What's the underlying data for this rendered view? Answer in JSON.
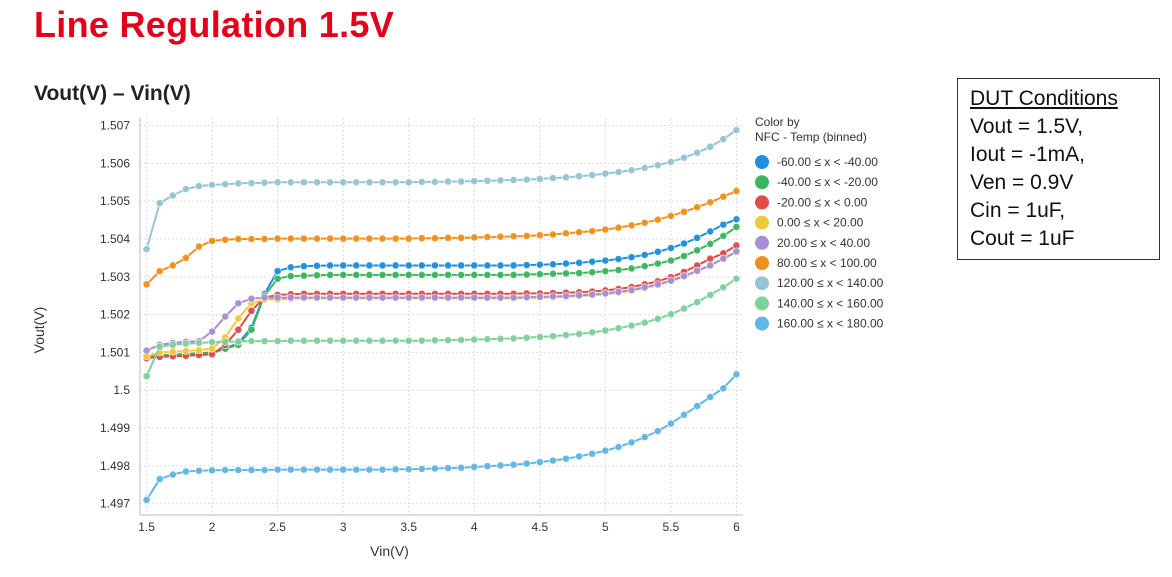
{
  "page_title": "Line Regulation 1.5V",
  "dut_conditions": {
    "heading": "DUT Conditions",
    "lines": [
      "Vout = 1.5V,",
      "Iout = -1mA,",
      "Ven = 0.9V",
      "Cin = 1uF,",
      "Cout = 1uF"
    ]
  },
  "chart_data": {
    "type": "line",
    "title": "Vout(V) – Vin(V)",
    "xlabel": "Vin(V)",
    "ylabel": "Vout(V)",
    "xlim": [
      1.45,
      6.05
    ],
    "ylim": [
      1.4967,
      1.5072
    ],
    "xticks": [
      1.5,
      2,
      2.5,
      3,
      3.5,
      4,
      4.5,
      5,
      5.5,
      6
    ],
    "xtick_labels": [
      "1.5",
      "2",
      "2.5",
      "3",
      "3.5",
      "4",
      "4.5",
      "5",
      "5.5",
      "6"
    ],
    "yticks": [
      1.497,
      1.498,
      1.499,
      1.5,
      1.501,
      1.502,
      1.503,
      1.504,
      1.505,
      1.506,
      1.507
    ],
    "ytick_labels": [
      "1.497",
      "1.498",
      "1.499",
      "1.5",
      "1.501",
      "1.502",
      "1.503",
      "1.504",
      "1.505",
      "1.506",
      "1.507"
    ],
    "grid": true,
    "legend": {
      "title_lines": [
        "Color by",
        "NFC - Temp (binned)"
      ],
      "position": "right"
    },
    "x": [
      1.5,
      1.6,
      1.7,
      1.8,
      1.9,
      2.0,
      2.1,
      2.2,
      2.3,
      2.4,
      2.5,
      2.6,
      2.7,
      2.8,
      2.9,
      3.0,
      3.1,
      3.2,
      3.3,
      3.4,
      3.5,
      3.6,
      3.7,
      3.8,
      3.9,
      4.0,
      4.1,
      4.2,
      4.3,
      4.4,
      4.5,
      4.6,
      4.7,
      4.8,
      4.9,
      5.0,
      5.1,
      5.2,
      5.3,
      5.4,
      5.5,
      5.6,
      5.7,
      5.8,
      5.9,
      6.0
    ],
    "series": [
      {
        "name": "-60.00 ≤ x < -40.00",
        "color": "#1f8fde",
        "values": [
          1.50085,
          1.5009,
          1.50092,
          1.50094,
          1.50096,
          1.50098,
          1.5011,
          1.50125,
          1.50165,
          1.50255,
          1.50315,
          1.50325,
          1.50328,
          1.50329,
          1.5033,
          1.5033,
          1.5033,
          1.5033,
          1.5033,
          1.5033,
          1.5033,
          1.5033,
          1.5033,
          1.5033,
          1.5033,
          1.5033,
          1.5033,
          1.5033,
          1.5033,
          1.50331,
          1.50332,
          1.50333,
          1.50335,
          1.50337,
          1.5034,
          1.50343,
          1.50347,
          1.50352,
          1.50358,
          1.50366,
          1.50376,
          1.50388,
          1.50403,
          1.5042,
          1.50438,
          1.50452
        ]
      },
      {
        "name": "-40.00 ≤ x < -20.00",
        "color": "#3cb55f",
        "values": [
          1.50088,
          1.50092,
          1.50094,
          1.50096,
          1.50098,
          1.501,
          1.5011,
          1.5012,
          1.5016,
          1.5025,
          1.50295,
          1.50302,
          1.50303,
          1.50304,
          1.50305,
          1.50305,
          1.50305,
          1.50305,
          1.50305,
          1.50305,
          1.50305,
          1.50305,
          1.50305,
          1.50305,
          1.50305,
          1.50305,
          1.50305,
          1.50305,
          1.50305,
          1.50306,
          1.50307,
          1.50308,
          1.50309,
          1.5031,
          1.50312,
          1.50315,
          1.50318,
          1.50322,
          1.50328,
          1.50335,
          1.50343,
          1.50355,
          1.5037,
          1.50387,
          1.50408,
          1.50432
        ]
      },
      {
        "name": "-20.00 ≤ x < 0.00",
        "color": "#e24a4a",
        "values": [
          1.50085,
          1.50088,
          1.5009,
          1.50091,
          1.50093,
          1.50095,
          1.5012,
          1.5016,
          1.5021,
          1.50245,
          1.50252,
          1.50254,
          1.50255,
          1.50255,
          1.50255,
          1.50255,
          1.50255,
          1.50255,
          1.50255,
          1.50255,
          1.50255,
          1.50255,
          1.50255,
          1.50255,
          1.50255,
          1.50255,
          1.50255,
          1.50255,
          1.50255,
          1.50256,
          1.50256,
          1.50257,
          1.50258,
          1.50259,
          1.50261,
          1.50264,
          1.50268,
          1.50273,
          1.5028,
          1.50288,
          1.50299,
          1.50313,
          1.5033,
          1.50348,
          1.50362,
          1.50383
        ]
      },
      {
        "name": "0.00 ≤ x < 20.00",
        "color": "#f0c93a",
        "values": [
          1.5009,
          1.501,
          1.50102,
          1.50104,
          1.50106,
          1.5011,
          1.5014,
          1.5019,
          1.5023,
          1.5024,
          1.5024,
          1.50242,
          1.50243,
          1.50243,
          1.50243,
          1.50243,
          1.50243,
          1.50243,
          1.50243,
          1.50243,
          1.50243,
          1.50243,
          1.50243,
          1.50243,
          1.50243,
          1.50243,
          1.50243,
          1.50243,
          1.50243,
          1.50244,
          1.50245,
          1.50246,
          1.50247,
          1.50249,
          1.50251,
          1.50254,
          1.50258,
          1.50263,
          1.5027,
          1.50278,
          1.50288,
          1.503,
          1.50315,
          1.5033,
          1.50348,
          1.50365
        ]
      },
      {
        "name": "20.00 ≤ x < 40.00",
        "color": "#a78fd6",
        "values": [
          1.50105,
          1.5012,
          1.50125,
          1.50128,
          1.5013,
          1.50155,
          1.50195,
          1.5023,
          1.50242,
          1.50245,
          1.50245,
          1.50245,
          1.50245,
          1.50245,
          1.50245,
          1.50245,
          1.50245,
          1.50245,
          1.50245,
          1.50245,
          1.50245,
          1.50245,
          1.50245,
          1.50245,
          1.50245,
          1.50245,
          1.50245,
          1.50245,
          1.50245,
          1.50246,
          1.50247,
          1.50248,
          1.50249,
          1.50251,
          1.50253,
          1.50256,
          1.5026,
          1.50265,
          1.50272,
          1.5028,
          1.5029,
          1.50302,
          1.50316,
          1.5033,
          1.50348,
          1.50367
        ]
      },
      {
        "name": "80.00 ≤ x < 100.00",
        "color": "#f0901c",
        "values": [
          1.5028,
          1.50315,
          1.5033,
          1.5035,
          1.5038,
          1.50395,
          1.50398,
          1.504,
          1.504,
          1.504,
          1.50401,
          1.50401,
          1.50401,
          1.50401,
          1.50401,
          1.50401,
          1.50401,
          1.50401,
          1.50401,
          1.50401,
          1.50401,
          1.50402,
          1.50402,
          1.50403,
          1.50403,
          1.50404,
          1.50405,
          1.50406,
          1.50407,
          1.50408,
          1.5041,
          1.50412,
          1.50415,
          1.50418,
          1.50421,
          1.50425,
          1.5043,
          1.50436,
          1.50443,
          1.50451,
          1.50461,
          1.50472,
          1.50484,
          1.50497,
          1.50512,
          1.50527
        ]
      },
      {
        "name": "120.00 ≤ x < 140.00",
        "color": "#96c4d4",
        "values": [
          1.50373,
          1.50495,
          1.50515,
          1.50532,
          1.5054,
          1.50543,
          1.50545,
          1.50547,
          1.50548,
          1.50549,
          1.5055,
          1.5055,
          1.5055,
          1.5055,
          1.5055,
          1.5055,
          1.5055,
          1.5055,
          1.5055,
          1.5055,
          1.5055,
          1.50551,
          1.50551,
          1.50552,
          1.50552,
          1.50553,
          1.50554,
          1.50555,
          1.50556,
          1.50557,
          1.50559,
          1.50561,
          1.50563,
          1.50566,
          1.50569,
          1.50573,
          1.50577,
          1.50582,
          1.50588,
          1.50595,
          1.50604,
          1.50615,
          1.50628,
          1.50644,
          1.50664,
          1.50688
        ]
      },
      {
        "name": "140.00 ≤ x < 160.00",
        "color": "#7fd09a",
        "values": [
          1.50037,
          1.50115,
          1.5012,
          1.50123,
          1.50125,
          1.50127,
          1.50128,
          1.50129,
          1.5013,
          1.5013,
          1.5013,
          1.50131,
          1.50131,
          1.50131,
          1.50131,
          1.50131,
          1.50131,
          1.50131,
          1.50131,
          1.50131,
          1.50131,
          1.50131,
          1.50132,
          1.50132,
          1.50133,
          1.50134,
          1.50135,
          1.50136,
          1.50137,
          1.50139,
          1.50141,
          1.50143,
          1.50146,
          1.50149,
          1.50153,
          1.50158,
          1.50164,
          1.50171,
          1.50179,
          1.50189,
          1.50201,
          1.50216,
          1.50233,
          1.50252,
          1.50272,
          1.50295
        ]
      },
      {
        "name": "160.00 ≤ x < 180.00",
        "color": "#62b6e6",
        "values": [
          1.4971,
          1.49765,
          1.49777,
          1.49785,
          1.49787,
          1.49788,
          1.49789,
          1.49789,
          1.49789,
          1.49789,
          1.4979,
          1.4979,
          1.4979,
          1.4979,
          1.4979,
          1.4979,
          1.4979,
          1.4979,
          1.4979,
          1.49791,
          1.49791,
          1.49792,
          1.49793,
          1.49794,
          1.49795,
          1.49797,
          1.49799,
          1.49801,
          1.49803,
          1.49806,
          1.4981,
          1.49814,
          1.49819,
          1.49825,
          1.49832,
          1.4984,
          1.4985,
          1.49862,
          1.49876,
          1.49892,
          1.49912,
          1.49935,
          1.49958,
          1.49982,
          1.50005,
          1.50042
        ]
      }
    ]
  }
}
